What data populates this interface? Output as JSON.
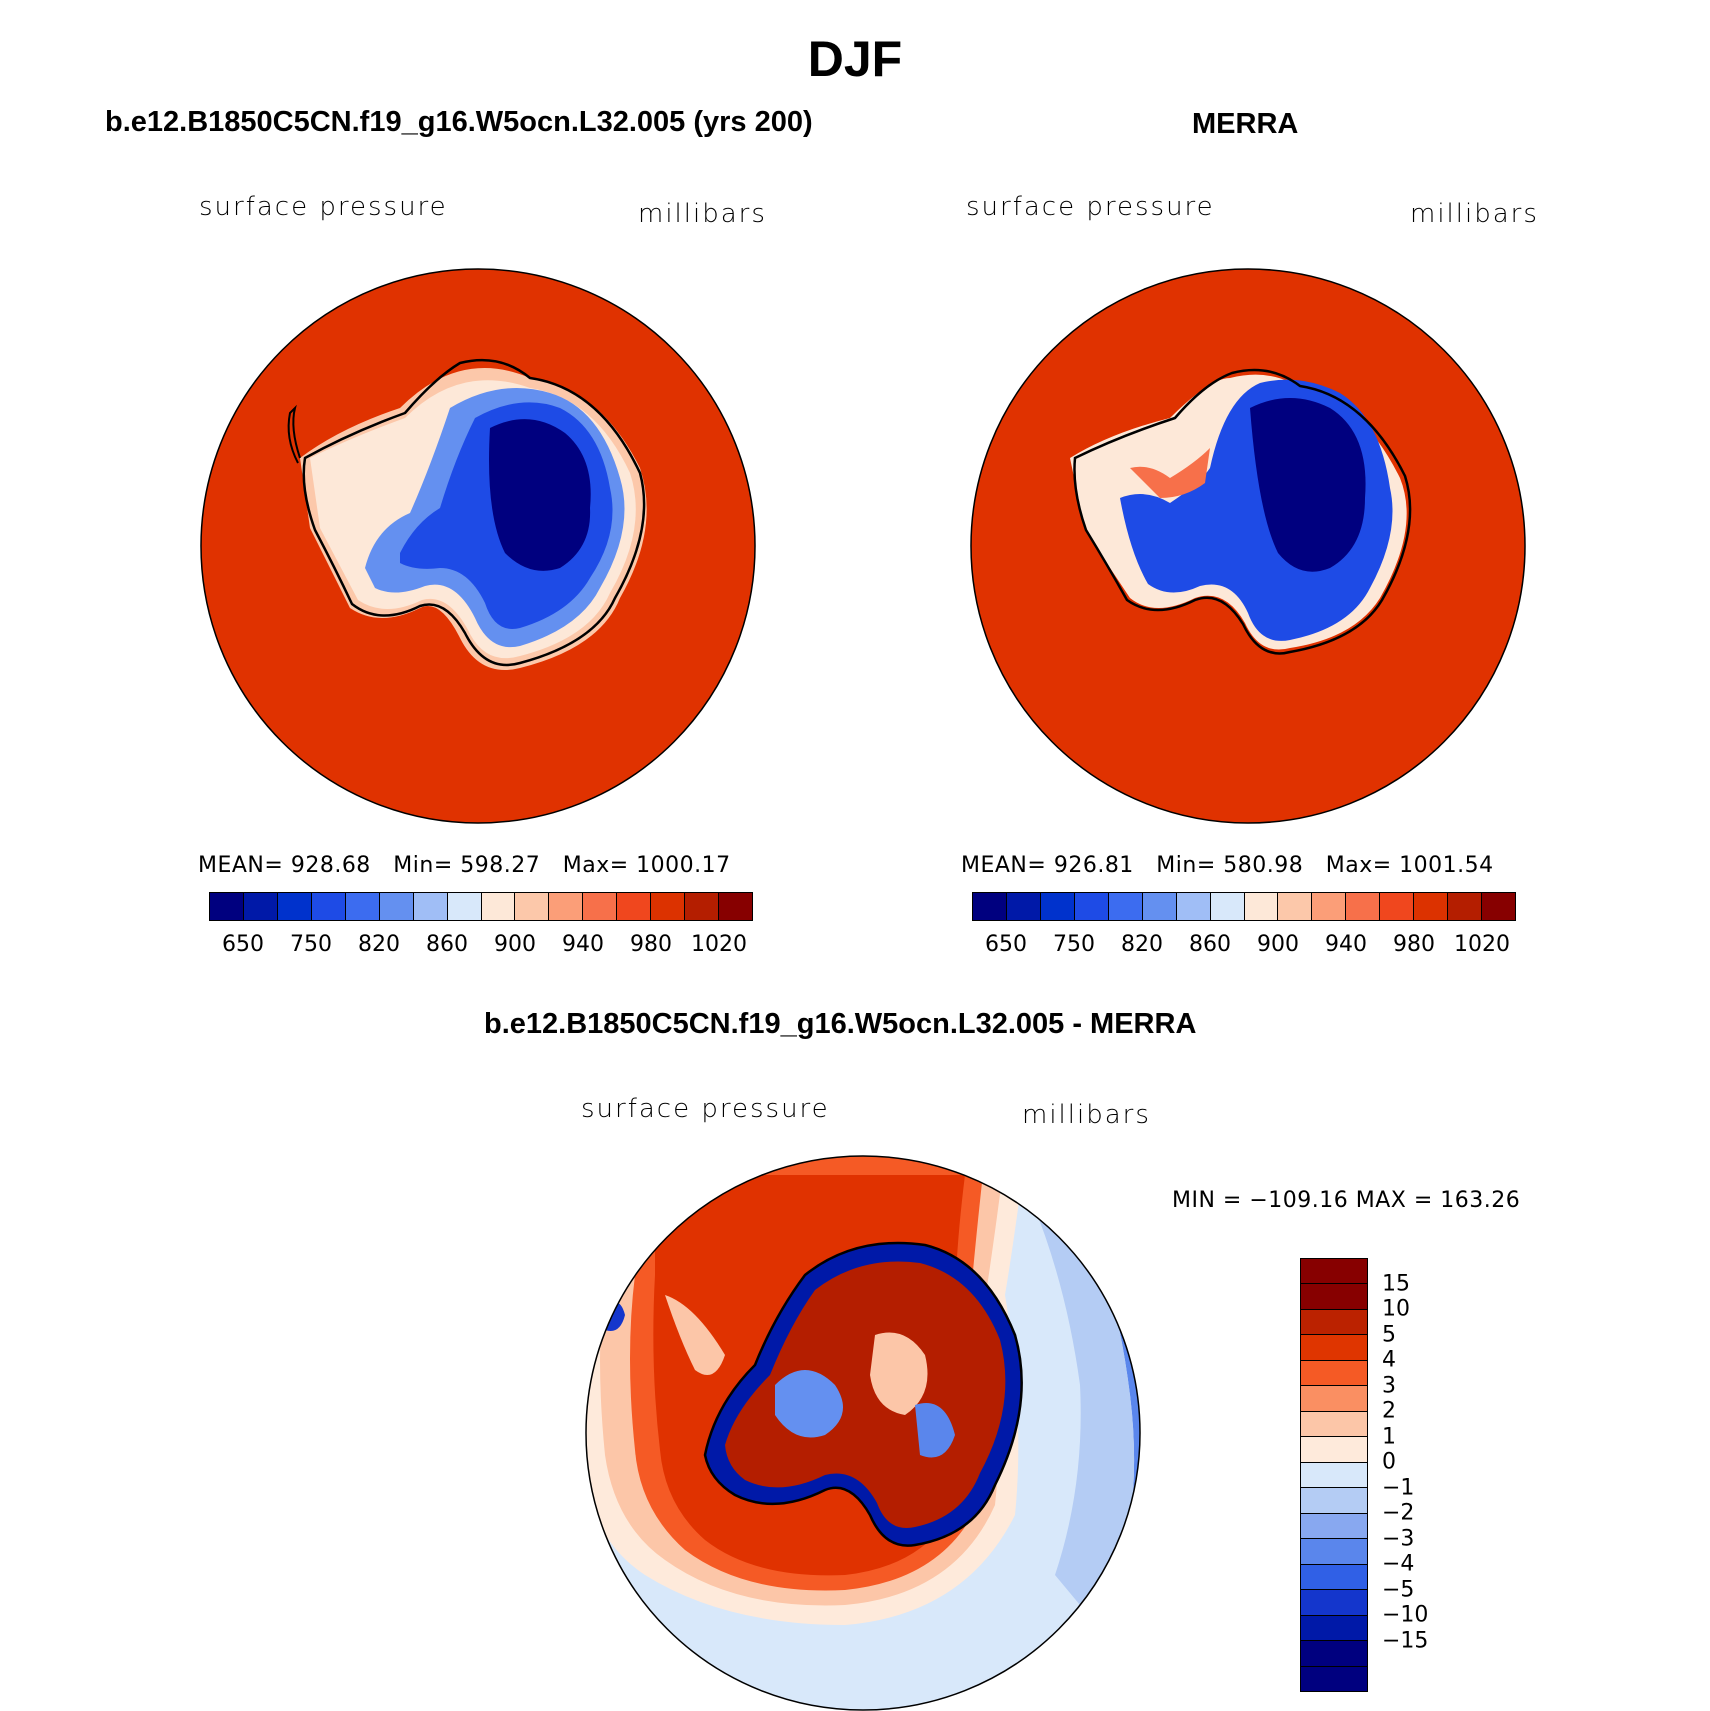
{
  "title": "DJF",
  "panels": {
    "model": {
      "title": "b.e12.B1850C5CN.f19_g16.W5ocn.L32.005 (yrs 200)",
      "variable": "surface pressure",
      "units": "millibars",
      "mean_label": "MEAN=",
      "mean": "928.68",
      "min_label": "Min=",
      "min": "598.27",
      "max_label": "Max=",
      "max": "1000.17"
    },
    "obs": {
      "title": "MERRA",
      "variable": "surface pressure",
      "units": "millibars",
      "mean_label": "MEAN=",
      "mean": "926.81",
      "min_label": "Min=",
      "min": "580.98",
      "max_label": "Max=",
      "max": "1001.54"
    },
    "diff": {
      "title": "b.e12.B1850C5CN.f19_g16.W5ocn.L32.005 - MERRA",
      "variable": "surface pressure",
      "units": "millibars",
      "minmax": "MIN = −109.16  MAX = 163.26"
    }
  },
  "colorbar_abs": {
    "colors": [
      "#00007f",
      "#0019a8",
      "#0032cc",
      "#1e4be6",
      "#3c6cf0",
      "#6490f0",
      "#a0bef6",
      "#d8e8fa",
      "#fde8d8",
      "#fcc8aa",
      "#fb9e78",
      "#f7704a",
      "#f0471e",
      "#dc3200",
      "#b41e00",
      "#870000"
    ],
    "tick_labels": [
      "650",
      "750",
      "820",
      "860",
      "900",
      "940",
      "980",
      "1020"
    ]
  },
  "colorbar_diff": {
    "colors": [
      "#870000",
      "#bb2200",
      "#df3500",
      "#f55a25",
      "#fa8f62",
      "#fcc6a8",
      "#feeadb",
      "#d8e8fa",
      "#b4ccf4",
      "#88a8f0",
      "#5a86ec",
      "#3060e6",
      "#1436cc",
      "#0019a8",
      "#00007f"
    ],
    "tick_labels": [
      "15",
      "10",
      "5",
      "4",
      "3",
      "2",
      "1",
      "0",
      "−1",
      "−2",
      "−3",
      "−4",
      "−5",
      "−10",
      "−15"
    ]
  },
  "map_colors": {
    "ocean_abs": "#e03200",
    "ice_deep": "#00007f",
    "ice_mid": "#1e4be6",
    "ice_light": "#6490f0",
    "coast_white": "#fde8d8",
    "coast_pink": "#fcc8aa",
    "diff_red": "#e03200",
    "diff_dark": "#b41e00",
    "diff_orange": "#f7704a",
    "diff_peach": "#fcc6a8",
    "diff_lightblue": "#d8e8fa",
    "diff_blue": "#3060e6",
    "diff_navy": "#0019a8"
  }
}
